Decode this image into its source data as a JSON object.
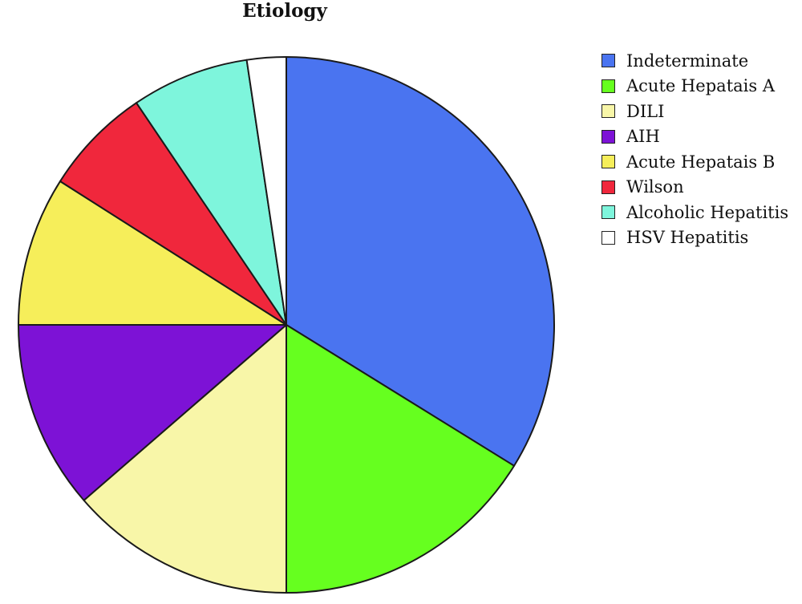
{
  "chart_data": {
    "type": "pie",
    "title": "Etiology",
    "legend_position": "right",
    "slices": [
      {
        "label": "Indeterminate",
        "value": 37.2,
        "color": "#4a74f0"
      },
      {
        "label": "Acute Hepatais A",
        "value": 17.8,
        "color": "#66ff1f"
      },
      {
        "label": "DILI",
        "value": 15.0,
        "color": "#f8f6a8"
      },
      {
        "label": "AIH",
        "value": 12.5,
        "color": "#7d12d6"
      },
      {
        "label": "Acute Hepatais B",
        "value": 9.9,
        "color": "#f6ee5a"
      },
      {
        "label": "Wilson",
        "value": 7.2,
        "color": "#f0273c"
      },
      {
        "label": "Alcoholic Hepatitis",
        "value": 7.8,
        "color": "#7ef5dc"
      },
      {
        "label": "HSV Hepatitis",
        "value": 2.6,
        "color": "#ffffff"
      }
    ]
  }
}
